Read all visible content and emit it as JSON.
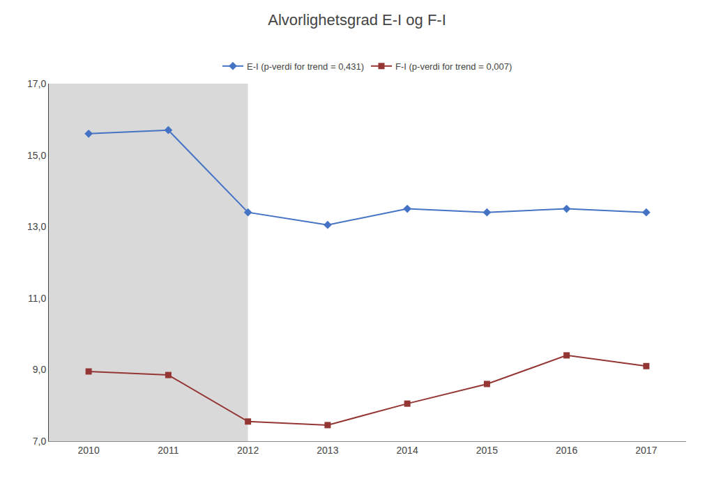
{
  "chart_data": {
    "type": "line",
    "title": "Alvorlighetsgrad E-I og F-I",
    "x": [
      2010,
      2011,
      2012,
      2013,
      2014,
      2015,
      2016,
      2017
    ],
    "series": [
      {
        "name": "E-I (p-verdi for trend = 0,431)",
        "color": "#4472C4",
        "marker": "diamond",
        "values": [
          15.6,
          15.7,
          13.4,
          13.05,
          13.5,
          13.4,
          13.5,
          13.4
        ]
      },
      {
        "name": "F-I (p-verdi for trend = 0,007)",
        "color": "#943634",
        "marker": "square",
        "values": [
          8.95,
          8.85,
          7.55,
          7.45,
          8.05,
          8.6,
          9.4,
          9.1
        ]
      }
    ],
    "xlim": [
      2009.5,
      2017.5
    ],
    "xticks": [
      2010,
      2011,
      2012,
      2013,
      2014,
      2015,
      2016,
      2017
    ],
    "ylim": [
      7.0,
      17.0
    ],
    "yticks": [
      {
        "value": 7.0,
        "label": "7,0"
      },
      {
        "value": 9.0,
        "label": "9,0"
      },
      {
        "value": 11.0,
        "label": "11,0"
      },
      {
        "value": 13.0,
        "label": "13,0"
      },
      {
        "value": 15.0,
        "label": "15,0"
      },
      {
        "value": 17.0,
        "label": "17,0"
      }
    ],
    "shade": {
      "range": [
        2009.5,
        2012.0
      ],
      "color": "#D9D9D9"
    },
    "grid": false,
    "legend": "upper center"
  }
}
